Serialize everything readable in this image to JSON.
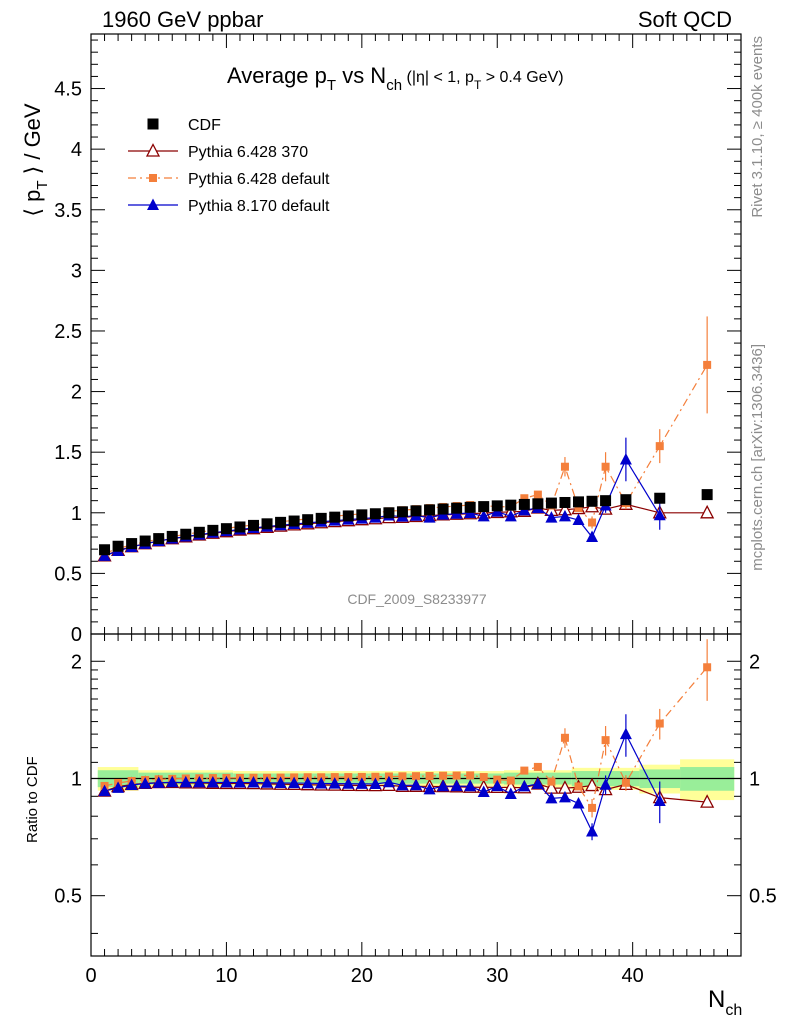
{
  "header": {
    "left": "1960 GeV ppbar",
    "right": "Soft QCD"
  },
  "side": {
    "top": "Rivet 3.1.10, ≥ 400k events",
    "bottom": "mcplots.cern.ch [arXiv:1306.3436]"
  },
  "chart_data": {
    "type": "scatter",
    "title": {
      "main": "Average p",
      "main_sub": "T",
      "mid": " vs N",
      "mid_sub": "ch",
      "cut1": " (|η| < 1, p",
      "cut_sub": "T",
      "cut2": " > 0.4 GeV)"
    },
    "analysis_label": "CDF_2009_S8233977",
    "xlabel": "N",
    "xlabel_sub": "ch",
    "ylabel_top": "⟨ p",
    "ylabel_top_sub": "T",
    "ylabel_top_end": " ⟩ / GeV",
    "ylabel_ratio": "Ratio to CDF",
    "xlim": [
      0,
      48
    ],
    "ylim_top": [
      0,
      4.95
    ],
    "ylim_ratio": [
      0.35,
      2.35
    ],
    "x_ticks": [
      {
        "v": 0,
        "label": "0"
      },
      {
        "v": 10,
        "label": "10"
      },
      {
        "v": 20,
        "label": "20"
      },
      {
        "v": 30,
        "label": "30"
      },
      {
        "v": 40,
        "label": "40"
      }
    ],
    "y_ticks_top": [
      {
        "v": 0,
        "label": "0"
      },
      {
        "v": 0.5,
        "label": "0.5"
      },
      {
        "v": 1,
        "label": "1"
      },
      {
        "v": 1.5,
        "label": "1.5"
      },
      {
        "v": 2,
        "label": "2"
      },
      {
        "v": 2.5,
        "label": "2.5"
      },
      {
        "v": 3,
        "label": "3"
      },
      {
        "v": 3.5,
        "label": "3.5"
      },
      {
        "v": 4,
        "label": "4"
      },
      {
        "v": 4.5,
        "label": "4.5"
      }
    ],
    "y_ticks_ratio": [
      {
        "v": 0.5,
        "label": "0.5"
      },
      {
        "v": 1,
        "label": "1"
      },
      {
        "v": 2,
        "label": "2"
      }
    ],
    "x": [
      1,
      2,
      3,
      4,
      5,
      6,
      7,
      8,
      9,
      10,
      11,
      12,
      13,
      14,
      15,
      16,
      17,
      18,
      19,
      20,
      21,
      22,
      23,
      24,
      25,
      26,
      27,
      28,
      29,
      30,
      31,
      32,
      33,
      34,
      35,
      36,
      37,
      38,
      39.5,
      42,
      45.5
    ],
    "series": [
      {
        "name": "CDF",
        "color": "#000000",
        "marker": "square",
        "y": [
          0.695,
          0.724,
          0.746,
          0.767,
          0.787,
          0.805,
          0.823,
          0.839,
          0.855,
          0.869,
          0.883,
          0.896,
          0.909,
          0.921,
          0.932,
          0.943,
          0.954,
          0.964,
          0.974,
          0.983,
          0.992,
          1.0,
          1.008,
          1.016,
          1.024,
          1.031,
          1.038,
          1.045,
          1.051,
          1.057,
          1.063,
          1.069,
          1.074,
          1.08,
          1.085,
          1.09,
          1.095,
          1.1,
          1.108,
          1.12,
          1.15
        ]
      },
      {
        "name": "Pythia 6.428 370",
        "color": "#8b0000",
        "marker": "triangle-open",
        "y": [
          0.645,
          0.69,
          0.72,
          0.745,
          0.768,
          0.786,
          0.802,
          0.817,
          0.831,
          0.844,
          0.857,
          0.869,
          0.88,
          0.89,
          0.9,
          0.909,
          0.918,
          0.927,
          0.935,
          0.943,
          0.951,
          0.96,
          0.962,
          0.97,
          0.977,
          0.983,
          0.988,
          0.992,
          0.998,
          1.003,
          1.008,
          1.012,
          1.04,
          1.02,
          1.025,
          1.035,
          1.05,
          1.03,
          1.07,
          1.0,
          1.0
        ],
        "yerr": [
          0,
          0,
          0,
          0,
          0,
          0,
          0,
          0,
          0,
          0,
          0,
          0,
          0,
          0,
          0,
          0,
          0,
          0,
          0,
          0,
          0,
          0,
          0,
          0,
          0,
          0,
          0,
          0,
          0,
          0,
          0,
          0,
          0,
          0,
          0,
          0,
          0,
          0,
          0,
          0,
          0
        ]
      },
      {
        "name": "Pythia 6.428 default",
        "color": "#f47f3b",
        "marker": "square-small",
        "y": [
          0.665,
          0.705,
          0.735,
          0.76,
          0.783,
          0.803,
          0.823,
          0.84,
          0.857,
          0.872,
          0.886,
          0.9,
          0.913,
          0.926,
          0.938,
          0.95,
          0.961,
          0.972,
          0.982,
          0.992,
          1.002,
          1.012,
          1.021,
          1.03,
          1.039,
          1.048,
          1.056,
          1.064,
          1.06,
          1.05,
          1.05,
          1.12,
          1.15,
          1.06,
          1.38,
          1.04,
          0.92,
          1.38,
          1.08,
          1.55,
          2.22
        ],
        "yerr": [
          0,
          0,
          0,
          0,
          0,
          0,
          0,
          0,
          0,
          0,
          0,
          0,
          0,
          0,
          0,
          0,
          0,
          0,
          0,
          0,
          0,
          0,
          0,
          0,
          0,
          0,
          0,
          0,
          0,
          0,
          0,
          0,
          0,
          0,
          0.08,
          0,
          0.05,
          0.12,
          0.05,
          0.14,
          0.4
        ]
      },
      {
        "name": "Pythia 8.170 default",
        "color": "#0000cc",
        "marker": "triangle",
        "y": [
          0.645,
          0.685,
          0.718,
          0.744,
          0.767,
          0.787,
          0.804,
          0.82,
          0.835,
          0.849,
          0.862,
          0.875,
          0.886,
          0.897,
          0.907,
          0.917,
          0.926,
          0.935,
          0.944,
          0.952,
          0.96,
          0.978,
          0.968,
          0.976,
          0.96,
          0.985,
          0.992,
          0.998,
          0.97,
          1.01,
          0.97,
          1.02,
          1.04,
          0.96,
          0.97,
          0.94,
          0.8,
          1.06,
          1.44,
          0.98,
          null
        ],
        "yerr": [
          0,
          0,
          0,
          0,
          0,
          0,
          0,
          0,
          0,
          0,
          0,
          0,
          0,
          0,
          0,
          0,
          0,
          0,
          0,
          0,
          0,
          0,
          0,
          0,
          0,
          0,
          0,
          0,
          0,
          0,
          0,
          0,
          0,
          0,
          0,
          0,
          0.04,
          0.06,
          0.18,
          0.12,
          0
        ]
      }
    ],
    "ratio_band": {
      "x_edges": [
        0.5,
        3.5,
        10.5,
        20.5,
        30.5,
        35.5,
        40.5,
        43.5,
        47.5
      ],
      "inner": [
        0.05,
        0.035,
        0.03,
        0.03,
        0.035,
        0.045,
        0.055,
        0.07,
        0.07
      ],
      "outer": [
        0.07,
        0.05,
        0.045,
        0.045,
        0.05,
        0.065,
        0.085,
        0.12,
        0.12
      ]
    }
  }
}
